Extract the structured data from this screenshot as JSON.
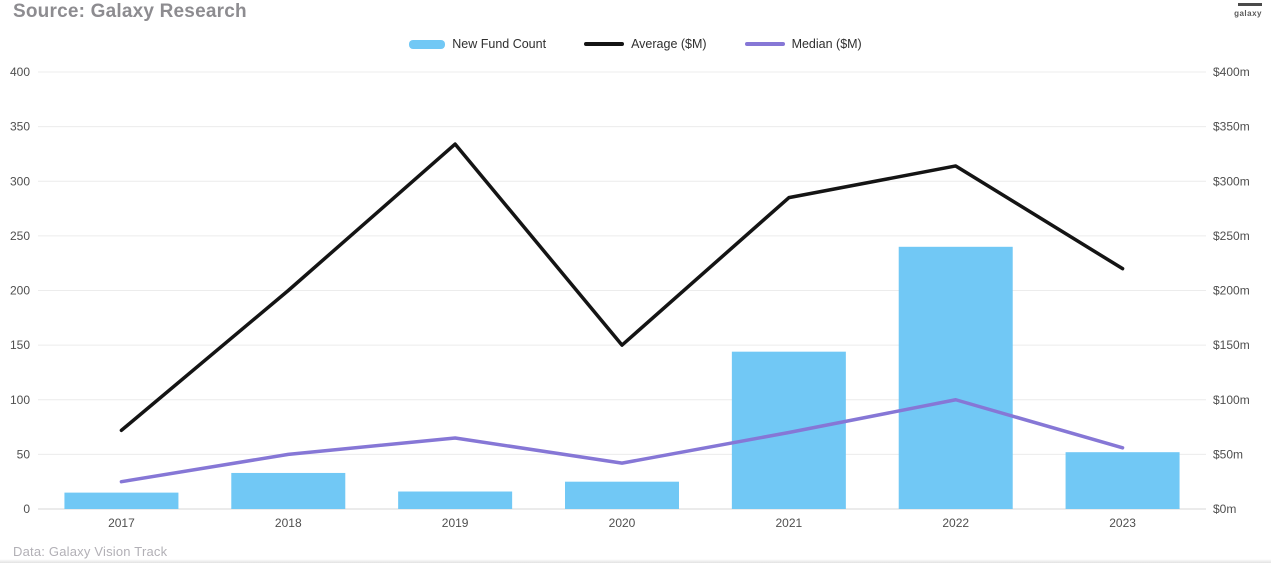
{
  "header": {
    "title": "Source: Galaxy Research",
    "logo_text": "galaxy"
  },
  "footer": {
    "text": "Data: Galaxy Vision Track"
  },
  "legend": [
    {
      "label": "New Fund Count",
      "swatch": "bar",
      "color": "#71C8F5"
    },
    {
      "label": "Average ($M)",
      "swatch": "line",
      "color": "#141414"
    },
    {
      "label": "Median ($M)",
      "swatch": "line",
      "color": "#8677D6"
    }
  ],
  "chart_data": {
    "type": "bar",
    "subtype": "combo-bar-line",
    "title": "Source: Galaxy Research",
    "categories": [
      "2017",
      "2018",
      "2019",
      "2020",
      "2021",
      "2022",
      "2023"
    ],
    "series": [
      {
        "name": "New Fund Count",
        "type": "bar",
        "axis": "left",
        "color": "#71C8F5",
        "values": [
          15,
          33,
          16,
          25,
          144,
          240,
          52
        ]
      },
      {
        "name": "Average ($M)",
        "type": "line",
        "axis": "right",
        "color": "#141414",
        "values": [
          72,
          200,
          334,
          150,
          285,
          314,
          220
        ]
      },
      {
        "name": "Median ($M)",
        "type": "line",
        "axis": "right",
        "color": "#8677D6",
        "values": [
          25,
          50,
          65,
          42,
          70,
          100,
          56
        ]
      }
    ],
    "left_axis": {
      "min": 0,
      "max": 400,
      "step": 50,
      "ticks": [
        "0",
        "50",
        "100",
        "150",
        "200",
        "250",
        "300",
        "350",
        "400"
      ]
    },
    "right_axis": {
      "min": 0,
      "max": 400,
      "step": 50,
      "ticks": [
        "$0m",
        "$50m",
        "$100m",
        "$150m",
        "$200m",
        "$250m",
        "$300m",
        "$350m",
        "$400m"
      ]
    },
    "grid": true,
    "legend_position": "top-center",
    "colors": {
      "gridline": "#ececec",
      "baseline": "#d7d7d7",
      "tick_text": "#4f4f4f"
    }
  }
}
